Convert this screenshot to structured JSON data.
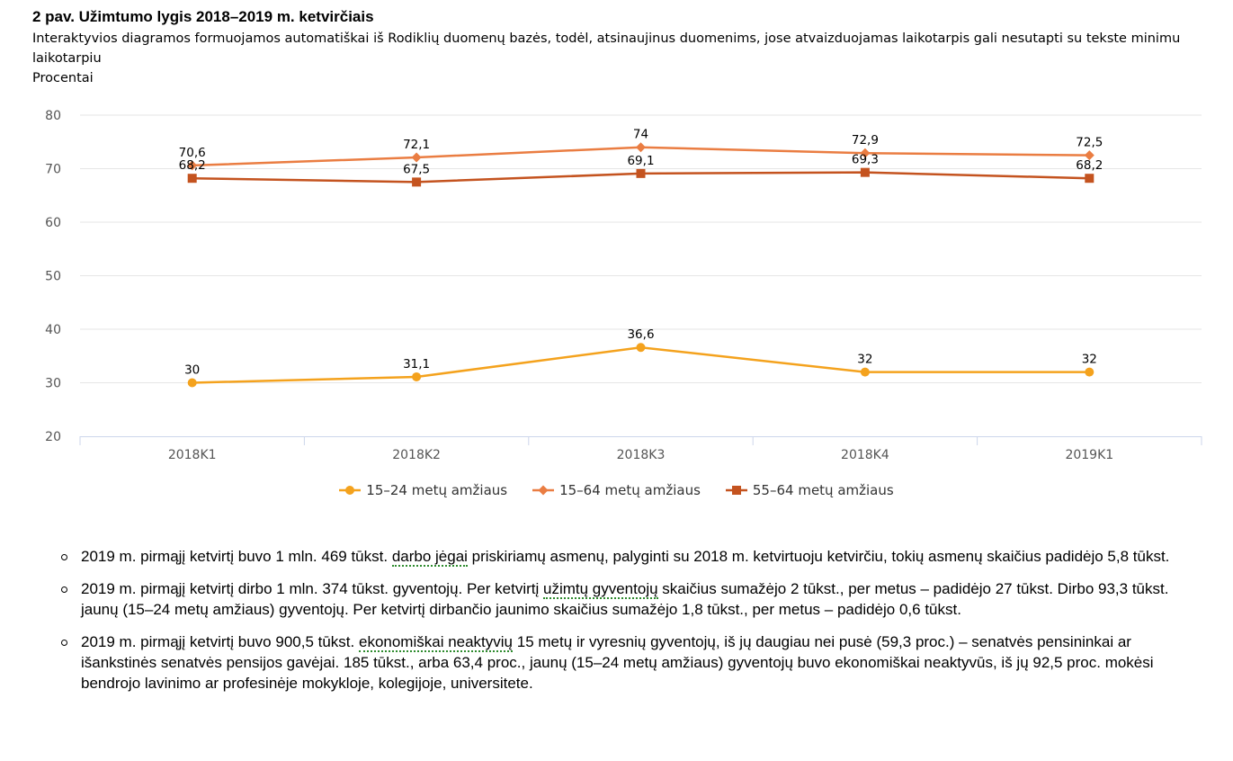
{
  "header": {
    "title": "2 pav. Užimtumo lygis 2018–2019 m. ketvirčiais",
    "subtitle": "Interaktyvios diagramos formuojamos automatiškai iš Rodiklių duomenų bazės, todėl, atsinaujinus duomenims, jose atvaizduojamas laikotarpis gali nesutapti su tekste minimu laikotarpiu",
    "unit": "Procentai"
  },
  "chart_data": {
    "type": "line",
    "categories": [
      "2018K1",
      "2018K2",
      "2018K3",
      "2018K4",
      "2019K1"
    ],
    "ylim": [
      20,
      80
    ],
    "yticks": [
      80,
      70,
      60,
      50,
      40,
      30,
      20
    ],
    "grid": true,
    "legend_position": "bottom",
    "series": [
      {
        "name": "15–24 metų amžiaus",
        "values": [
          30,
          31.1,
          36.6,
          32,
          32
        ],
        "labels": [
          "30",
          "31,1",
          "36,6",
          "32",
          "32"
        ],
        "color": "#f4a21d",
        "marker": "circle"
      },
      {
        "name": "15–64 metų amžiaus",
        "values": [
          70.6,
          72.1,
          74,
          72.9,
          72.5
        ],
        "labels": [
          "70,6",
          "72,1",
          "74",
          "72,9",
          "72,5"
        ],
        "color": "#ea7d42",
        "marker": "diamond"
      },
      {
        "name": "55–64 metų amžiaus",
        "values": [
          68.2,
          67.5,
          69.1,
          69.3,
          68.2
        ],
        "labels": [
          "68,2",
          "67,5",
          "69,1",
          "69,3",
          "68,2"
        ],
        "color": "#c4531f",
        "marker": "square"
      }
    ]
  },
  "bullets": [
    {
      "pre": "2019 m. pirmąjį ketvirtį buvo 1 mln. 469 tūkst. ",
      "term": "darbo jėgai",
      "post": " priskiriamų asmenų, palyginti su 2018 m. ketvirtuoju ketvirčiu, tokių asmenų skaičius padidėjo 5,8 tūkst."
    },
    {
      "pre": "2019 m. pirmąjį ketvirtį dirbo 1 mln. 374 tūkst. gyventojų. Per ketvirtį ",
      "term": "užimtų gyventojų",
      "post": " skaičius sumažėjo 2 tūkst., per metus – padidėjo 27 tūkst. Dirbo 93,3 tūkst. jaunų (15–24 metų amžiaus) gyventojų. Per ketvirtį dirbančio jaunimo skaičius sumažėjo 1,8 tūkst., per metus – padidėjo 0,6 tūkst."
    },
    {
      "pre": "2019 m. pirmąjį ketvirtį buvo 900,5 tūkst. ",
      "term": "ekonomiškai neaktyvių",
      "post": " 15 metų ir vyresnių gyventojų, iš jų daugiau nei pusė (59,3 proc.) – senatvės pensininkai ar išankstinės senatvės pensijos gavėjai. 185 tūkst., arba 63,4 proc., jaunų (15–24 metų amžiaus) gyventojų buvo ekonomiškai neaktyvūs, iš jų 92,5 proc. mokėsi bendrojo lavinimo ar profesinėje mokykloje, kolegijoje, universitete."
    }
  ]
}
